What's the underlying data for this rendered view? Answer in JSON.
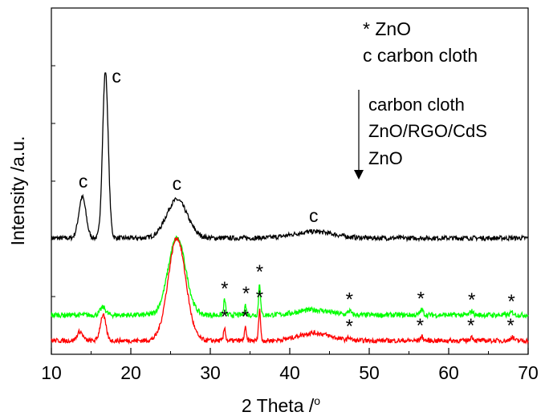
{
  "chart_data": {
    "type": "line",
    "xlabel": "2 Theta /",
    "xlabel_sup": "o",
    "ylabel": "Intensity /a.u.",
    "xlim": [
      10,
      70
    ],
    "x_ticks": [
      "10",
      "20",
      "30",
      "40",
      "50",
      "60",
      "70"
    ],
    "y_ticks_shown": false,
    "grid": false,
    "legend": {
      "lines": [
        "*  ZnO",
        "c  carbon cloth"
      ],
      "order_lines": [
        "carbon cloth",
        "ZnO/RGO/CdS",
        "ZnO"
      ],
      "arrow": "down"
    },
    "series": [
      {
        "color": "#000000",
        "offset": 0.8,
        "noise": 0.018,
        "peaks": [
          {
            "x": 13.9,
            "h": 0.32,
            "w": 0.45
          },
          {
            "x": 16.8,
            "h": 1.3,
            "w": 0.35
          },
          {
            "x": 25.8,
            "h": 0.3,
            "w": 1.3
          },
          {
            "x": 43.0,
            "h": 0.05,
            "w": 2.5
          }
        ]
      },
      {
        "color": "#00ff00",
        "offset": 0.2,
        "noise": 0.02,
        "peaks": [
          {
            "x": 16.5,
            "h": 0.06,
            "w": 0.35
          },
          {
            "x": 25.8,
            "h": 0.6,
            "w": 1.1
          },
          {
            "x": 31.8,
            "h": 0.12,
            "w": 0.12
          },
          {
            "x": 34.4,
            "h": 0.08,
            "w": 0.12
          },
          {
            "x": 36.2,
            "h": 0.25,
            "w": 0.12
          },
          {
            "x": 43.0,
            "h": 0.04,
            "w": 2.0
          },
          {
            "x": 47.5,
            "h": 0.03,
            "w": 0.2
          },
          {
            "x": 56.6,
            "h": 0.04,
            "w": 0.2
          },
          {
            "x": 62.9,
            "h": 0.03,
            "w": 0.2
          },
          {
            "x": 68.0,
            "h": 0.02,
            "w": 0.2
          }
        ]
      },
      {
        "color": "#ff0000",
        "offset": 0.0,
        "noise": 0.018,
        "peaks": [
          {
            "x": 13.6,
            "h": 0.07,
            "w": 0.35
          },
          {
            "x": 16.5,
            "h": 0.2,
            "w": 0.35
          },
          {
            "x": 25.8,
            "h": 0.8,
            "w": 1.1
          },
          {
            "x": 31.8,
            "h": 0.1,
            "w": 0.12
          },
          {
            "x": 34.4,
            "h": 0.1,
            "w": 0.12
          },
          {
            "x": 36.2,
            "h": 0.25,
            "w": 0.12
          },
          {
            "x": 43.0,
            "h": 0.06,
            "w": 2.0
          },
          {
            "x": 47.5,
            "h": 0.02,
            "w": 0.2
          },
          {
            "x": 56.6,
            "h": 0.03,
            "w": 0.2
          },
          {
            "x": 62.9,
            "h": 0.03,
            "w": 0.2
          },
          {
            "x": 68.0,
            "h": 0.03,
            "w": 0.2
          }
        ]
      }
    ],
    "annotations": [
      {
        "text": "c",
        "x": 14.0
      },
      {
        "text": "c",
        "x": 18.2
      },
      {
        "text": "c",
        "x": 25.8
      },
      {
        "text": "c",
        "x": 43.0
      },
      {
        "text": "*",
        "x": 31.8
      },
      {
        "text": "*",
        "x": 34.5
      },
      {
        "text": "*",
        "x": 36.2
      },
      {
        "text": "*",
        "x": 47.5
      },
      {
        "text": "*",
        "x": 56.5
      },
      {
        "text": "*",
        "x": 62.9
      },
      {
        "text": "*",
        "x": 67.9
      },
      {
        "text": "*",
        "x": 31.8
      },
      {
        "text": "*",
        "x": 34.4
      },
      {
        "text": "*",
        "x": 36.2
      },
      {
        "text": "*",
        "x": 47.5
      },
      {
        "text": "*",
        "x": 56.4
      },
      {
        "text": "*",
        "x": 62.8
      },
      {
        "text": "*",
        "x": 67.8
      }
    ]
  }
}
